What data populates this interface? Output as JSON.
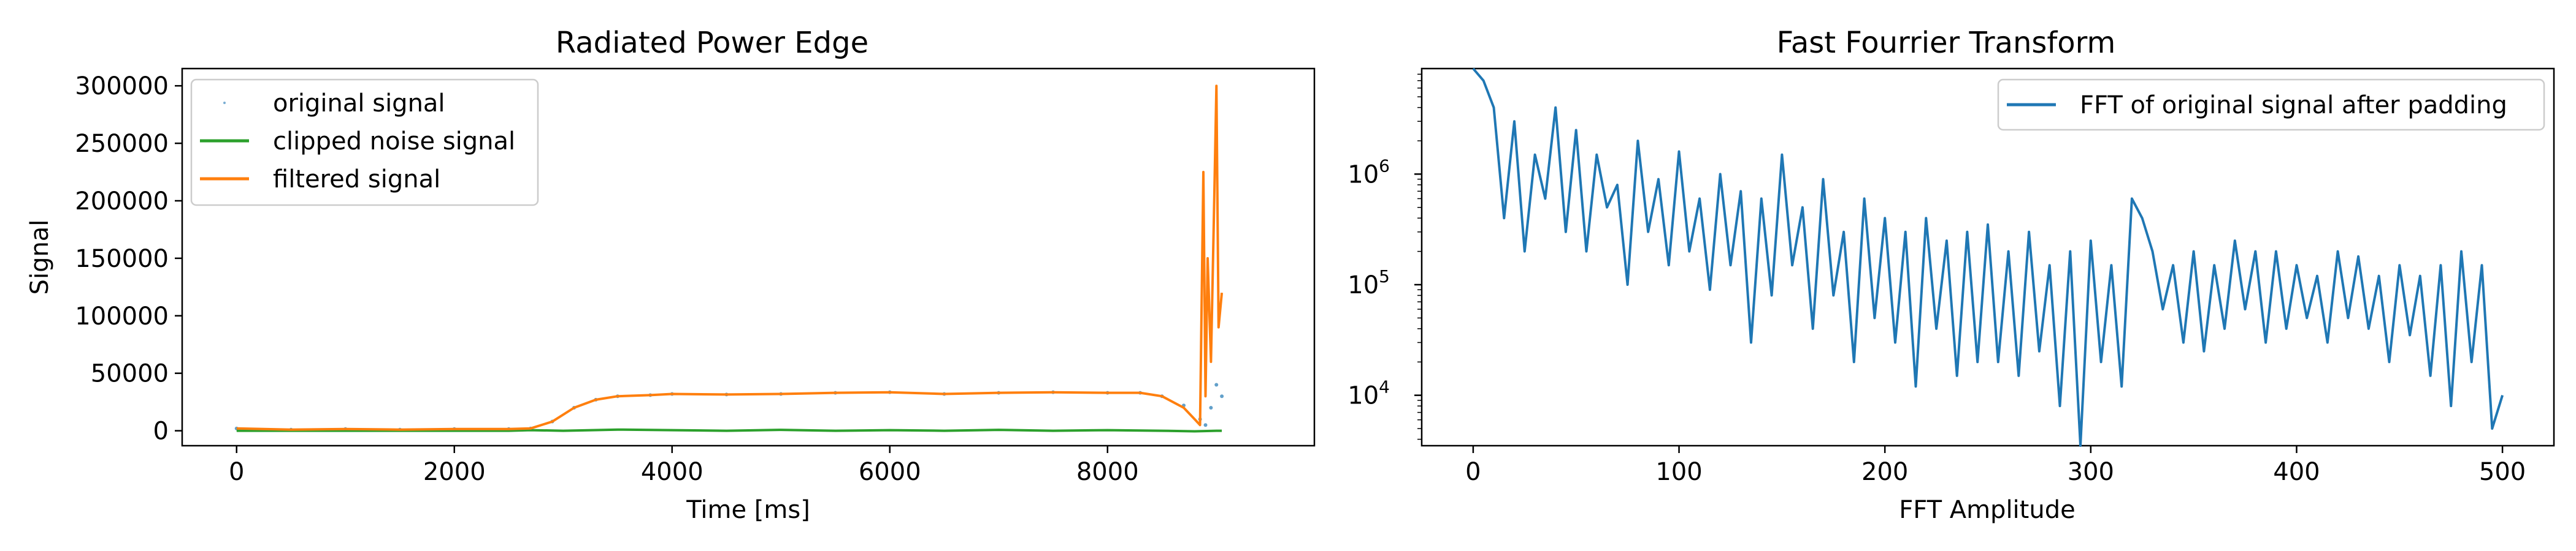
{
  "chart_data": [
    {
      "type": "line",
      "title": "Radiated Power Edge",
      "xlabel": "Time [ms]",
      "ylabel": "Signal",
      "xlim": [
        -500,
        9900
      ],
      "ylim": [
        -13000,
        315000
      ],
      "xticks": [
        0,
        2000,
        4000,
        6000,
        8000
      ],
      "xtick_labels": [
        "0",
        "2000",
        "4000",
        "6000",
        "8000"
      ],
      "yticks": [
        0,
        50000,
        100000,
        150000,
        200000,
        250000,
        300000
      ],
      "ytick_labels": [
        "0",
        "50000",
        "100000",
        "150000",
        "200000",
        "250000",
        "300000"
      ],
      "grid": false,
      "legend_position": "top-left",
      "series": [
        {
          "name": "original signal",
          "style": "points",
          "color": "#1f77b4",
          "x": [
            0,
            500,
            1000,
            1500,
            2000,
            2500,
            2700,
            2900,
            3100,
            3300,
            3500,
            3800,
            4000,
            4500,
            5000,
            5500,
            6000,
            6500,
            7000,
            7500,
            8000,
            8300,
            8500,
            8700,
            8850,
            8900,
            8950,
            9000,
            9050
          ],
          "y": [
            2000,
            1000,
            1500,
            1000,
            1500,
            1500,
            2000,
            8000,
            20000,
            27000,
            30000,
            31000,
            32000,
            31500,
            32000,
            33000,
            33500,
            32000,
            33000,
            33500,
            33000,
            33000,
            30000,
            22000,
            10000,
            5000,
            20000,
            40000,
            30000
          ]
        },
        {
          "name": "clipped noise signal",
          "style": "line",
          "color": "#2ca02c",
          "x": [
            0,
            500,
            1000,
            1500,
            2000,
            2500,
            2700,
            3000,
            3500,
            4000,
            4500,
            5000,
            5500,
            6000,
            6500,
            7000,
            7500,
            8000,
            8500,
            8800,
            9000,
            9050
          ],
          "y": [
            0,
            0,
            0,
            0,
            0,
            0,
            500,
            0,
            1000,
            500,
            0,
            800,
            0,
            500,
            0,
            800,
            0,
            500,
            0,
            -500,
            0,
            0
          ]
        },
        {
          "name": "filtered signal",
          "style": "line",
          "color": "#ff7f0e",
          "x": [
            0,
            500,
            1000,
            1500,
            2000,
            2500,
            2700,
            2900,
            3100,
            3300,
            3500,
            3800,
            4000,
            4500,
            5000,
            5500,
            6000,
            6500,
            7000,
            7500,
            8000,
            8300,
            8500,
            8700,
            8800,
            8850,
            8880,
            8900,
            8920,
            8950,
            8980,
            9000,
            9020,
            9050
          ],
          "y": [
            2000,
            1000,
            1500,
            1000,
            1500,
            1500,
            2000,
            8000,
            20000,
            27000,
            30000,
            31000,
            32000,
            31500,
            32000,
            33000,
            33500,
            32000,
            33000,
            33500,
            33000,
            33000,
            30000,
            20000,
            10000,
            5000,
            225000,
            30000,
            150000,
            60000,
            200000,
            300000,
            90000,
            120000
          ]
        }
      ]
    },
    {
      "type": "line",
      "title": "Fast Fourrier Transform",
      "xlabel": "FFT Amplitude",
      "ylabel": "",
      "xlim": [
        -25,
        525
      ],
      "ylim": [
        3500,
        9000000
      ],
      "y_scale": "log",
      "xticks": [
        0,
        100,
        200,
        300,
        400,
        500
      ],
      "xtick_labels": [
        "0",
        "100",
        "200",
        "300",
        "400",
        "500"
      ],
      "yticks": [
        10000,
        100000,
        1000000
      ],
      "ytick_labels": [
        "10",
        "10",
        "10"
      ],
      "ytick_exponents": [
        "4",
        "5",
        "6"
      ],
      "grid": false,
      "legend_position": "top-right",
      "series": [
        {
          "name": "FFT of original signal after padding",
          "color": "#1f77b4",
          "x": [
            0,
            5,
            10,
            15,
            20,
            25,
            30,
            35,
            40,
            45,
            50,
            55,
            60,
            65,
            70,
            75,
            80,
            85,
            90,
            95,
            100,
            105,
            110,
            115,
            120,
            125,
            130,
            135,
            140,
            145,
            150,
            155,
            160,
            165,
            170,
            175,
            180,
            185,
            190,
            195,
            200,
            205,
            210,
            215,
            220,
            225,
            230,
            235,
            240,
            245,
            250,
            255,
            260,
            265,
            270,
            275,
            280,
            285,
            290,
            295,
            300,
            305,
            310,
            315,
            320,
            325,
            330,
            335,
            340,
            345,
            350,
            355,
            360,
            365,
            370,
            375,
            380,
            385,
            390,
            395,
            400,
            405,
            410,
            415,
            420,
            425,
            430,
            435,
            440,
            445,
            450,
            455,
            460,
            465,
            470,
            475,
            480,
            485,
            490,
            495,
            500
          ],
          "y": [
            9000000,
            7000000,
            4000000,
            400000,
            3000000,
            200000,
            1500000,
            600000,
            4000000,
            300000,
            2500000,
            200000,
            1500000,
            500000,
            800000,
            100000,
            2000000,
            300000,
            900000,
            150000,
            1600000,
            200000,
            600000,
            90000,
            1000000,
            150000,
            700000,
            30000,
            600000,
            80000,
            1500000,
            150000,
            500000,
            40000,
            900000,
            80000,
            300000,
            20000,
            600000,
            50000,
            400000,
            30000,
            300000,
            12000,
            400000,
            40000,
            250000,
            15000,
            300000,
            20000,
            350000,
            20000,
            200000,
            15000,
            300000,
            25000,
            150000,
            8000,
            200000,
            3500,
            250000,
            20000,
            150000,
            12000,
            600000,
            400000,
            200000,
            60000,
            150000,
            30000,
            200000,
            25000,
            150000,
            40000,
            250000,
            60000,
            200000,
            30000,
            200000,
            40000,
            150000,
            50000,
            120000,
            30000,
            200000,
            50000,
            180000,
            40000,
            120000,
            20000,
            150000,
            35000,
            120000,
            15000,
            150000,
            8000,
            200000,
            20000,
            150000,
            5000,
            10000
          ]
        }
      ]
    }
  ]
}
